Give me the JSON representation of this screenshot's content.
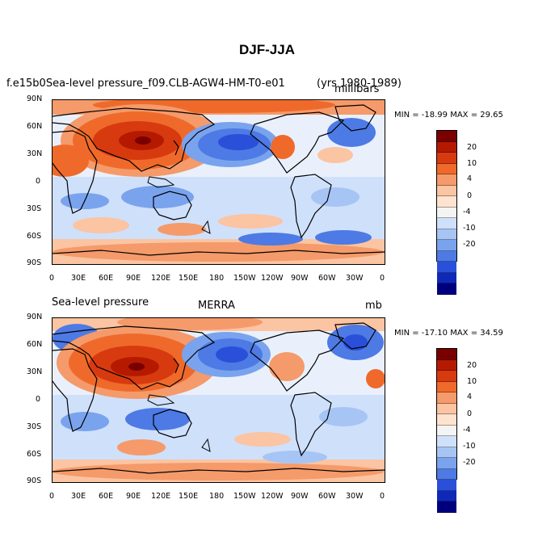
{
  "title": "DJF-JJA",
  "panels": [
    {
      "left_title_a": "f.e15b0Sea-level pressure_f09.CLB-AGW4-HM-T0-e01",
      "center_title": "",
      "right_title": "(yrs 1980-1989)",
      "units": "millibars",
      "minmax": "MIN = -18.99 MAX =  29.65"
    },
    {
      "left_title_a": "Sea-level pressure",
      "center_title": "MERRA",
      "right_title": "",
      "units": "mb",
      "minmax": "MIN = -17.10 MAX =  34.59"
    }
  ],
  "lat_ticks": [
    "90N",
    "60N",
    "30N",
    "0",
    "30S",
    "60S",
    "90S"
  ],
  "lon_ticks": [
    "0",
    "30E",
    "60E",
    "90E",
    "120E",
    "150E",
    "180",
    "150W",
    "120W",
    "90W",
    "60W",
    "30W",
    "0"
  ],
  "colorbar": {
    "labels": [
      "20",
      "10",
      "4",
      "0",
      "-4",
      "-10",
      "-20"
    ],
    "colors": [
      "#7a0000",
      "#b51a00",
      "#d83a10",
      "#ef6a2a",
      "#f59a6a",
      "#fbc4a2",
      "#fde3d0",
      "#f4f4f4",
      "#cfe0fb",
      "#a6c5f5",
      "#7aa3ee",
      "#4d7ae4",
      "#2a4fd8",
      "#1028b8",
      "#00007f"
    ]
  }
}
